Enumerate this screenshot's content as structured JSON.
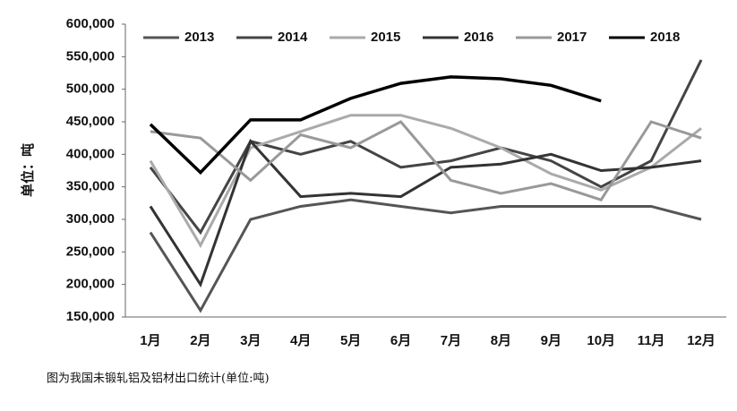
{
  "chart_data": {
    "type": "line",
    "y_label": "单位：吨",
    "caption": "图为我国未锻轧铝及铝材出口统计(单位:吨)",
    "categories": [
      "1月",
      "2月",
      "3月",
      "4月",
      "5月",
      "6月",
      "7月",
      "8月",
      "9月",
      "10月",
      "11月",
      "12月"
    ],
    "ylim": [
      150000,
      600000
    ],
    "yticks": [
      {
        "value": 150000,
        "label": "150,000"
      },
      {
        "value": 200000,
        "label": "200,000"
      },
      {
        "value": 250000,
        "label": "250,000"
      },
      {
        "value": 300000,
        "label": "300,000"
      },
      {
        "value": 350000,
        "label": "350,000"
      },
      {
        "value": 400000,
        "label": "400,000"
      },
      {
        "value": 450000,
        "label": "450,000"
      },
      {
        "value": 500000,
        "label": "500,000"
      },
      {
        "value": 550000,
        "label": "550,000"
      },
      {
        "value": 600000,
        "label": "600,000"
      }
    ],
    "grid": false,
    "legend": "top",
    "series": [
      {
        "name": "2013",
        "color": "#555555",
        "values": [
          280000,
          160000,
          300000,
          320000,
          330000,
          320000,
          310000,
          320000,
          320000,
          320000,
          320000,
          300000
        ]
      },
      {
        "name": "2014",
        "color": "#444444",
        "values": [
          380000,
          280000,
          420000,
          400000,
          420000,
          380000,
          390000,
          410000,
          390000,
          350000,
          390000,
          545000
        ]
      },
      {
        "name": "2015",
        "color": "#aaaaaa",
        "values": [
          390000,
          260000,
          410000,
          435000,
          460000,
          460000,
          440000,
          410000,
          370000,
          345000,
          380000,
          440000
        ]
      },
      {
        "name": "2016",
        "color": "#333333",
        "values": [
          320000,
          200000,
          420000,
          335000,
          340000,
          335000,
          380000,
          385000,
          400000,
          375000,
          380000,
          390000
        ]
      },
      {
        "name": "2017",
        "color": "#999999",
        "values": [
          435000,
          425000,
          360000,
          430000,
          410000,
          450000,
          360000,
          340000,
          355000,
          330000,
          450000,
          425000
        ]
      },
      {
        "name": "2018",
        "color": "#000000",
        "values": [
          446000,
          372000,
          453000,
          453000,
          486000,
          509000,
          519000,
          516000,
          506000,
          482000,
          null,
          null
        ]
      }
    ]
  }
}
